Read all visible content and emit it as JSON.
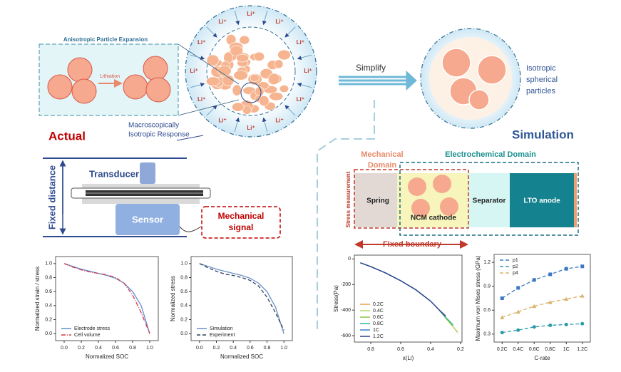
{
  "inset_title": "Anisotropic Particle Expansion",
  "lithiation": "Lithiation",
  "li_labels": [
    "Li⁺",
    "Li⁺",
    "Li⁺",
    "Li⁺",
    "Li⁺",
    "Li⁺",
    "Li⁺",
    "Li⁺",
    "Li⁺",
    "Li⁺",
    "Li⁺",
    "Li⁺"
  ],
  "response_label": [
    "Macroscopically",
    "Isotropic Response"
  ],
  "actual": "Actual",
  "simplify": "Simplify",
  "isotropic_label": [
    "Isotropic",
    "spherical",
    "particles"
  ],
  "simulation": "Simulation",
  "setup": {
    "transducer": "Transducer",
    "fixed_distance": "Fixed distance",
    "sensor": "Sensor",
    "signal": [
      "Mechanical",
      "signal"
    ]
  },
  "model": {
    "mechanical_domain": [
      "Mechanical",
      "Domain"
    ],
    "electrochemical_domain": "Electrochemical Domain",
    "stress_measurement": "Stress measurement",
    "spring": "Spring",
    "cathode": "NCM cathode",
    "separator": "Separator",
    "anode": "LTO anode",
    "fixed_boundary": "Fixed boundary"
  },
  "chart_data": [
    {
      "type": "line",
      "x_label": "Normalized SOC",
      "y_label": "Normalized strain / stress",
      "x": [
        0,
        0.1,
        0.2,
        0.3,
        0.4,
        0.5,
        0.6,
        0.7,
        0.8,
        0.9,
        1.0
      ],
      "series": [
        {
          "name": "Electrode stress",
          "color": "#5b8fd0",
          "linestyle": "solid",
          "values": [
            1.0,
            0.96,
            0.92,
            0.89,
            0.86,
            0.83,
            0.79,
            0.72,
            0.6,
            0.4,
            0.0
          ]
        },
        {
          "name": "Cell volume",
          "color": "#d6334a",
          "linestyle": "dashdot",
          "values": [
            1.0,
            0.95,
            0.91,
            0.88,
            0.86,
            0.84,
            0.8,
            0.72,
            0.55,
            0.3,
            0.0
          ]
        }
      ],
      "xlim": [
        -0.1,
        1.1
      ],
      "ylim": [
        -0.1,
        1.1
      ],
      "xticks": [
        {
          "value": 0,
          "label": "0.0"
        },
        0.2,
        0.4,
        0.6,
        0.8,
        {
          "value": 1,
          "label": "1.0"
        }
      ],
      "yticks": [
        {
          "value": 0,
          "label": "0.0"
        },
        0.2,
        0.4,
        0.6,
        0.8,
        {
          "value": 1,
          "label": "1.0"
        }
      ],
      "legend": "lower left"
    },
    {
      "type": "line",
      "x_label": "Normalized SOC",
      "y_label": "Normalized stress",
      "x": [
        0,
        0.1,
        0.2,
        0.3,
        0.4,
        0.5,
        0.6,
        0.7,
        0.8,
        0.9,
        1.0
      ],
      "series": [
        {
          "name": "Simulation",
          "color": "#6b8fc7",
          "linestyle": "solid",
          "values": [
            1.0,
            0.96,
            0.92,
            0.89,
            0.86,
            0.83,
            0.79,
            0.72,
            0.6,
            0.38,
            0.0
          ]
        },
        {
          "name": "Experiment",
          "color": "#2e3f5c",
          "linestyle": "dashed",
          "values": [
            1.0,
            0.94,
            0.89,
            0.85,
            0.83,
            0.8,
            0.76,
            0.68,
            0.52,
            0.3,
            0.05
          ]
        }
      ],
      "xlim": [
        -0.1,
        1.1
      ],
      "ylim": [
        -0.1,
        1.1
      ],
      "xticks": [
        {
          "value": 0,
          "label": "0.0"
        },
        0.2,
        0.4,
        0.6,
        0.8,
        {
          "value": 1,
          "label": "1.0"
        }
      ],
      "yticks": [
        {
          "value": 0,
          "label": "0.0"
        },
        0.2,
        0.4,
        0.6,
        0.8,
        {
          "value": 1,
          "label": "1.0"
        }
      ],
      "legend": "lower left"
    },
    {
      "type": "line",
      "x_label": "x(Li)",
      "y_label": "Stress(Pa)",
      "x": [
        0.87,
        0.8,
        0.7,
        0.6,
        0.5,
        0.4,
        0.35,
        0.3,
        0.25,
        0.22
      ],
      "series": [
        {
          "name": "0.2C",
          "color": "#f0a04b",
          "linestyle": "solid",
          "values": [
            -30,
            -60,
            -110,
            -170,
            -240,
            -330,
            -390,
            -460,
            -530,
            -575
          ]
        },
        {
          "name": "0.4C",
          "color": "#b5d86a",
          "linestyle": "solid",
          "values": [
            -30,
            -60,
            -110,
            -170,
            -240,
            -330,
            -390,
            -460,
            -530,
            -570
          ]
        },
        {
          "name": "0.6C",
          "color": "#8cc63f",
          "linestyle": "solid",
          "values": [
            -30,
            -60,
            -110,
            -170,
            -240,
            -330,
            -390,
            -460,
            -525,
            null
          ]
        },
        {
          "name": "0.8C",
          "color": "#2fb59a",
          "linestyle": "solid",
          "values": [
            -30,
            -60,
            -110,
            -170,
            -240,
            -330,
            -390,
            -455,
            -515,
            null
          ]
        },
        {
          "name": "1C",
          "color": "#3c7fc4",
          "linestyle": "solid",
          "values": [
            -30,
            -60,
            -110,
            -170,
            -240,
            -330,
            -390,
            -450,
            null,
            null
          ]
        },
        {
          "name": "1.2C",
          "color": "#2b3f8f",
          "linestyle": "solid",
          "values": [
            -30,
            -60,
            -110,
            -170,
            -240,
            -330,
            -390,
            -445,
            null,
            null
          ]
        }
      ],
      "xlim": [
        0.91,
        0.19
      ],
      "ylim": [
        -650,
        30
      ],
      "xticks": [
        0.8,
        0.6,
        0.4,
        0.2
      ],
      "yticks": [
        0,
        -200,
        -400,
        -600
      ],
      "legend": "lower left"
    },
    {
      "type": "line",
      "x_label": "C-rate",
      "y_label": "Maximum von Mises stress (GPa)",
      "categories": [
        "0.2C",
        "0.4C",
        "0.6C",
        "0.8C",
        "1C",
        "1.2C"
      ],
      "series": [
        {
          "name": "p1",
          "color": "#3a78c2",
          "linestyle": "dashed",
          "marker": "square",
          "values": [
            0.75,
            0.88,
            0.98,
            1.05,
            1.12,
            1.15
          ]
        },
        {
          "name": "p2",
          "color": "#2a9aa8",
          "linestyle": "dashed",
          "marker": "circle",
          "values": [
            0.32,
            0.35,
            0.39,
            0.41,
            0.42,
            0.43
          ]
        },
        {
          "name": "p4",
          "color": "#d9b36a",
          "linestyle": "dashed",
          "marker": "triangle",
          "values": [
            0.51,
            0.58,
            0.65,
            0.7,
            0.74,
            0.78
          ]
        }
      ],
      "ylim": [
        0.2,
        1.3
      ],
      "yticks": [
        0.3,
        0.6,
        0.9,
        1.2
      ],
      "legend": "upper left"
    }
  ]
}
